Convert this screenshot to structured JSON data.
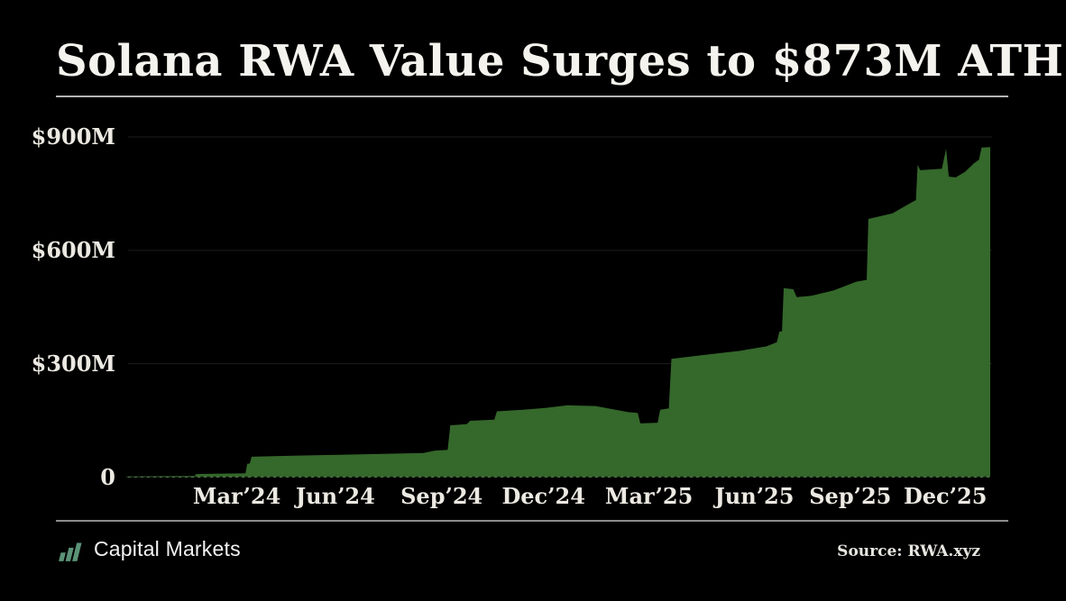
{
  "title": "Solana RWA Value Surges to $873M ATH",
  "footer": {
    "brand_label": "Capital Markets",
    "source_label": "Source: RWA.xyz"
  },
  "colors": {
    "background": "#000000",
    "area_fill": "#35682b",
    "title_text": "#f5f3ee",
    "axis_text": "#ece9e2",
    "gridline": "#1d1d1d",
    "baseline": "#7d7d7d",
    "baseline_on_area": "#0c1d07",
    "rule_top": "#b4b4b4",
    "rule_bottom": "#8c8c8c",
    "brand_icon_green": "#5b9377"
  },
  "chart_data": {
    "type": "area",
    "title": "Solana RWA Value Surges to $873M ATH",
    "unit": "USD millions",
    "ath_value_musd": 873,
    "ylim": [
      0,
      900
    ],
    "grid": "horizontal gridlines at 300/600/900, dashed zero baseline",
    "legend": "none",
    "yticks": [
      {
        "label": "$900M",
        "value": 900
      },
      {
        "label": "$600M",
        "value": 600
      },
      {
        "label": "$300M",
        "value": 300
      },
      {
        "label": "0",
        "value": 0
      }
    ],
    "xticks": [
      {
        "label": "Mar’24",
        "pos": 0.128
      },
      {
        "label": "Jun’24",
        "pos": 0.242
      },
      {
        "label": "Sep’24",
        "pos": 0.365
      },
      {
        "label": "Dec’24",
        "pos": 0.483
      },
      {
        "label": "Mar’25",
        "pos": 0.605
      },
      {
        "label": "Jun’25",
        "pos": 0.727
      },
      {
        "label": "Sep’25",
        "pos": 0.838
      },
      {
        "label": "Dec’25",
        "pos": 0.948
      }
    ],
    "points_note": "x = fraction of time axis (Dec 2023 to Dec 2025), v = RWA value in $M",
    "points": [
      [
        0.0,
        2
      ],
      [
        0.079,
        3
      ],
      [
        0.081,
        8
      ],
      [
        0.138,
        10
      ],
      [
        0.14,
        35
      ],
      [
        0.143,
        36
      ],
      [
        0.145,
        54
      ],
      [
        0.198,
        57
      ],
      [
        0.271,
        60
      ],
      [
        0.344,
        64
      ],
      [
        0.357,
        70
      ],
      [
        0.372,
        72
      ],
      [
        0.375,
        137
      ],
      [
        0.394,
        140
      ],
      [
        0.398,
        149
      ],
      [
        0.426,
        152
      ],
      [
        0.429,
        174
      ],
      [
        0.459,
        178
      ],
      [
        0.485,
        183
      ],
      [
        0.511,
        190
      ],
      [
        0.543,
        188
      ],
      [
        0.581,
        172
      ],
      [
        0.592,
        170
      ],
      [
        0.595,
        142
      ],
      [
        0.615,
        144
      ],
      [
        0.618,
        178
      ],
      [
        0.628,
        182
      ],
      [
        0.631,
        313
      ],
      [
        0.668,
        323
      ],
      [
        0.71,
        334
      ],
      [
        0.741,
        346
      ],
      [
        0.753,
        357
      ],
      [
        0.756,
        385
      ],
      [
        0.759,
        386
      ],
      [
        0.761,
        500
      ],
      [
        0.772,
        497
      ],
      [
        0.776,
        476
      ],
      [
        0.793,
        480
      ],
      [
        0.819,
        494
      ],
      [
        0.845,
        517
      ],
      [
        0.857,
        522
      ],
      [
        0.859,
        683
      ],
      [
        0.887,
        698
      ],
      [
        0.903,
        719
      ],
      [
        0.914,
        733
      ],
      [
        0.916,
        826
      ],
      [
        0.919,
        812
      ],
      [
        0.944,
        816
      ],
      [
        0.949,
        869
      ],
      [
        0.952,
        795
      ],
      [
        0.96,
        793
      ],
      [
        0.971,
        808
      ],
      [
        0.981,
        830
      ],
      [
        0.987,
        840
      ],
      [
        0.99,
        872
      ],
      [
        1.0,
        873
      ]
    ]
  }
}
